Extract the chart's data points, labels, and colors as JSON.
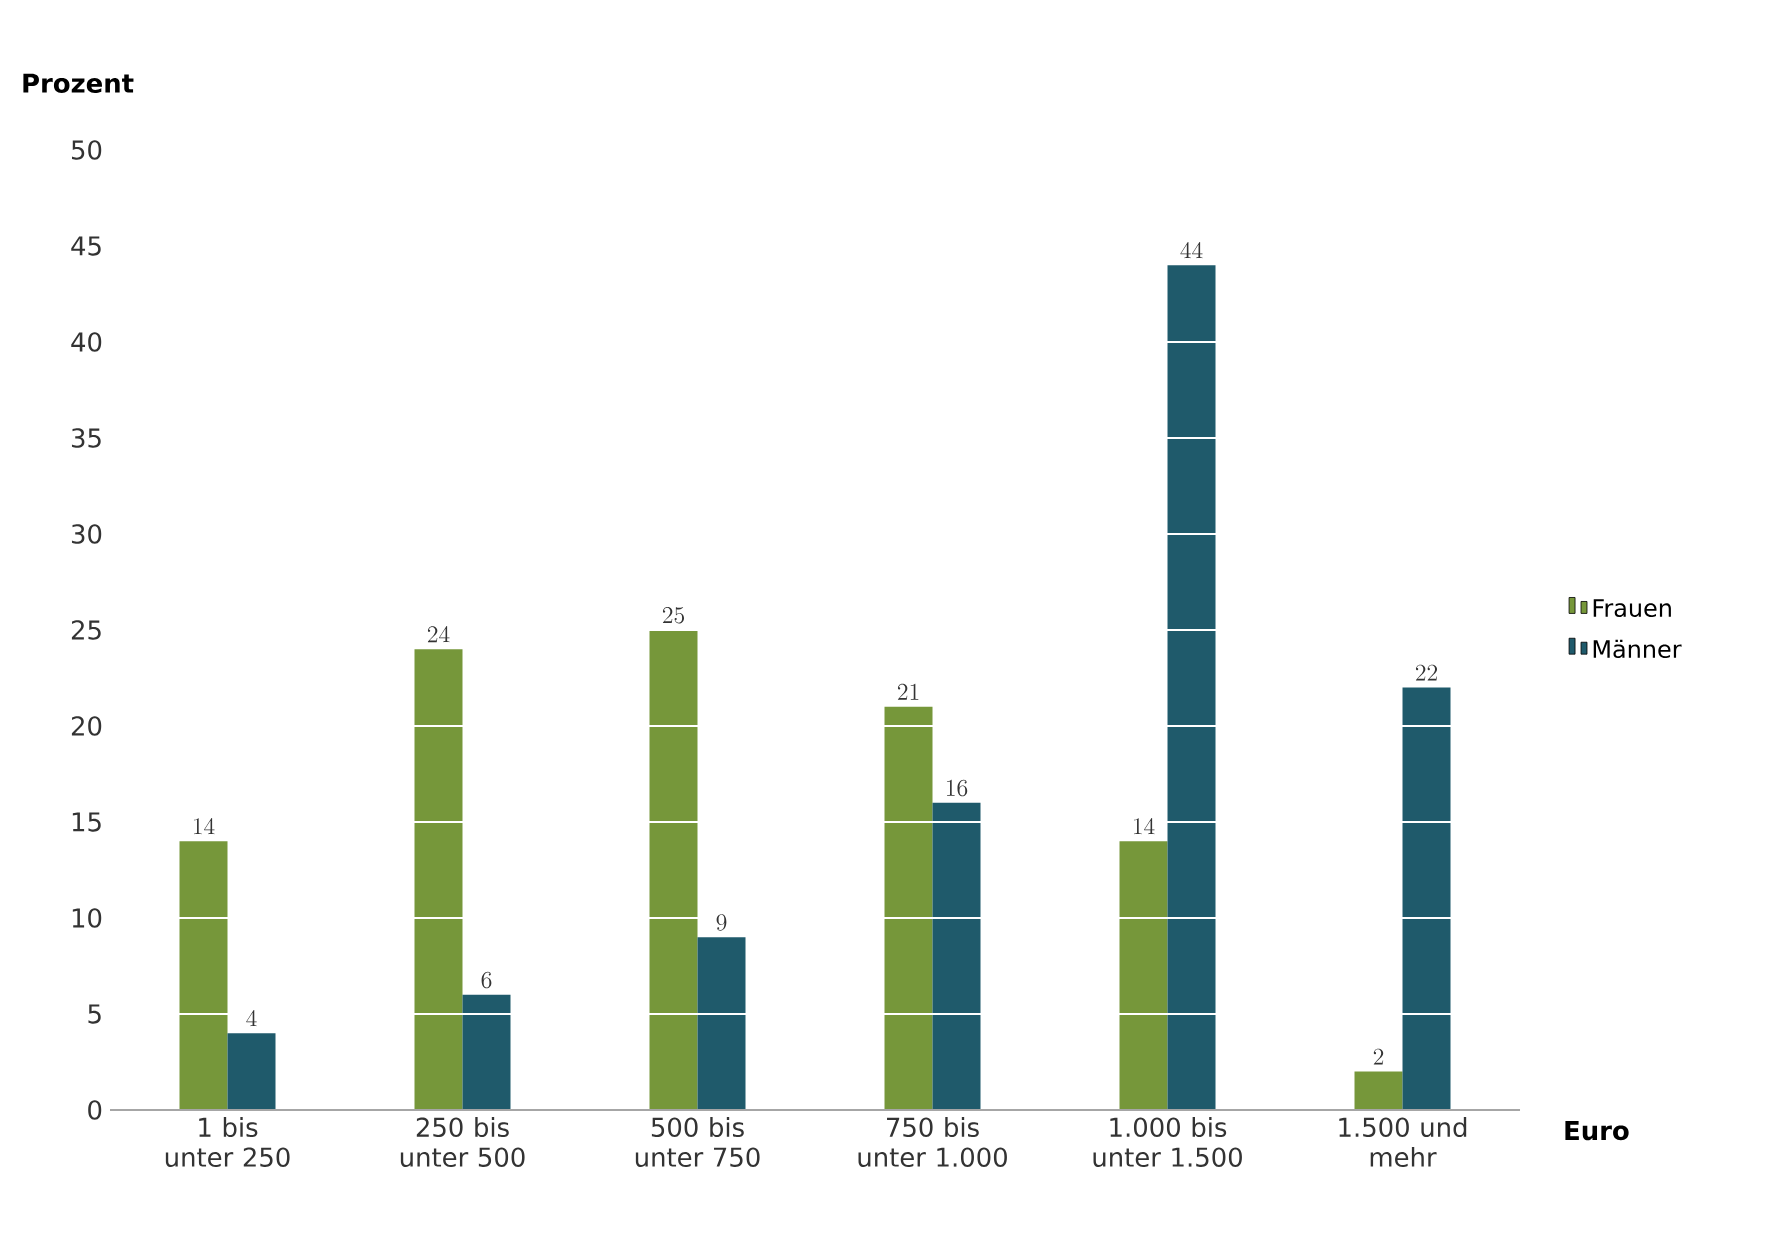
{
  "chart_data": {
    "type": "bar",
    "xlabel": "Euro",
    "ylabel": "Prozent",
    "categories": [
      "1 bis unter 250",
      "250 bis unter 500",
      "500 bis unter 750",
      "750 bis unter 1.000",
      "1.000 bis unter 1.500",
      "1.500 und mehr"
    ],
    "series": [
      {
        "name": "Frauen",
        "color": "#76973a",
        "values": [
          14,
          24,
          25,
          21,
          14,
          2
        ]
      },
      {
        "name": "Männer",
        "color": "#1f5a6b",
        "values": [
          4,
          6,
          9,
          16,
          44,
          22
        ]
      }
    ],
    "ylim": [
      0,
      50
    ],
    "yticks": [
      0,
      5,
      10,
      15,
      20,
      25,
      30,
      35,
      40,
      45,
      50
    ],
    "grid": "y",
    "legend": "right",
    "data_labels": true
  }
}
